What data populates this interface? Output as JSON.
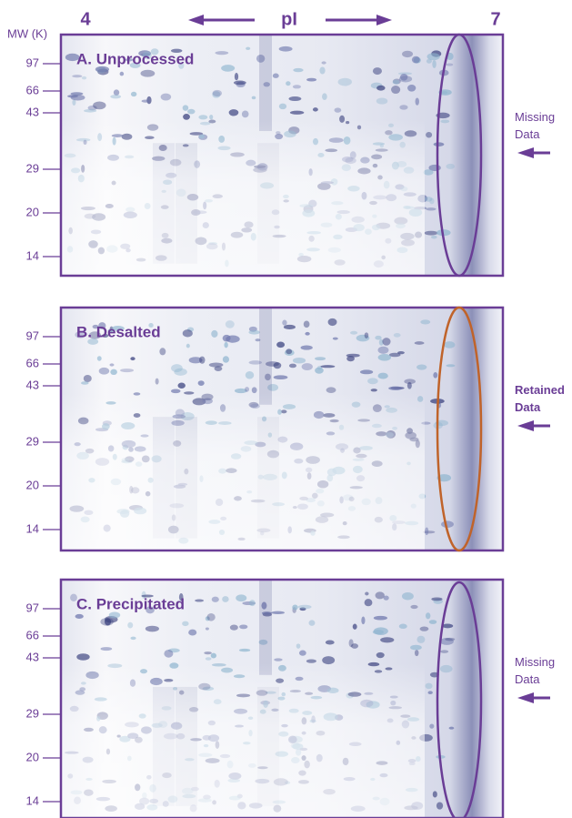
{
  "header": {
    "pi_low": "4",
    "pi_label": "pI",
    "pi_high": "7",
    "mw_label": "MW (K)"
  },
  "panels": [
    {
      "title": "A. Unprocessed",
      "mw_ticks": [
        "97",
        "66",
        "43",
        "29",
        "20",
        "14"
      ],
      "note": "Missing Data"
    },
    {
      "title": "B. Desalted",
      "mw_ticks": [
        "97",
        "66",
        "43",
        "29",
        "20",
        "14"
      ],
      "note": "Retained Data"
    },
    {
      "title": "C. Precipitated",
      "mw_ticks": [
        "97",
        "66",
        "43",
        "29",
        "20",
        "14"
      ],
      "note": "Missing Data"
    }
  ]
}
